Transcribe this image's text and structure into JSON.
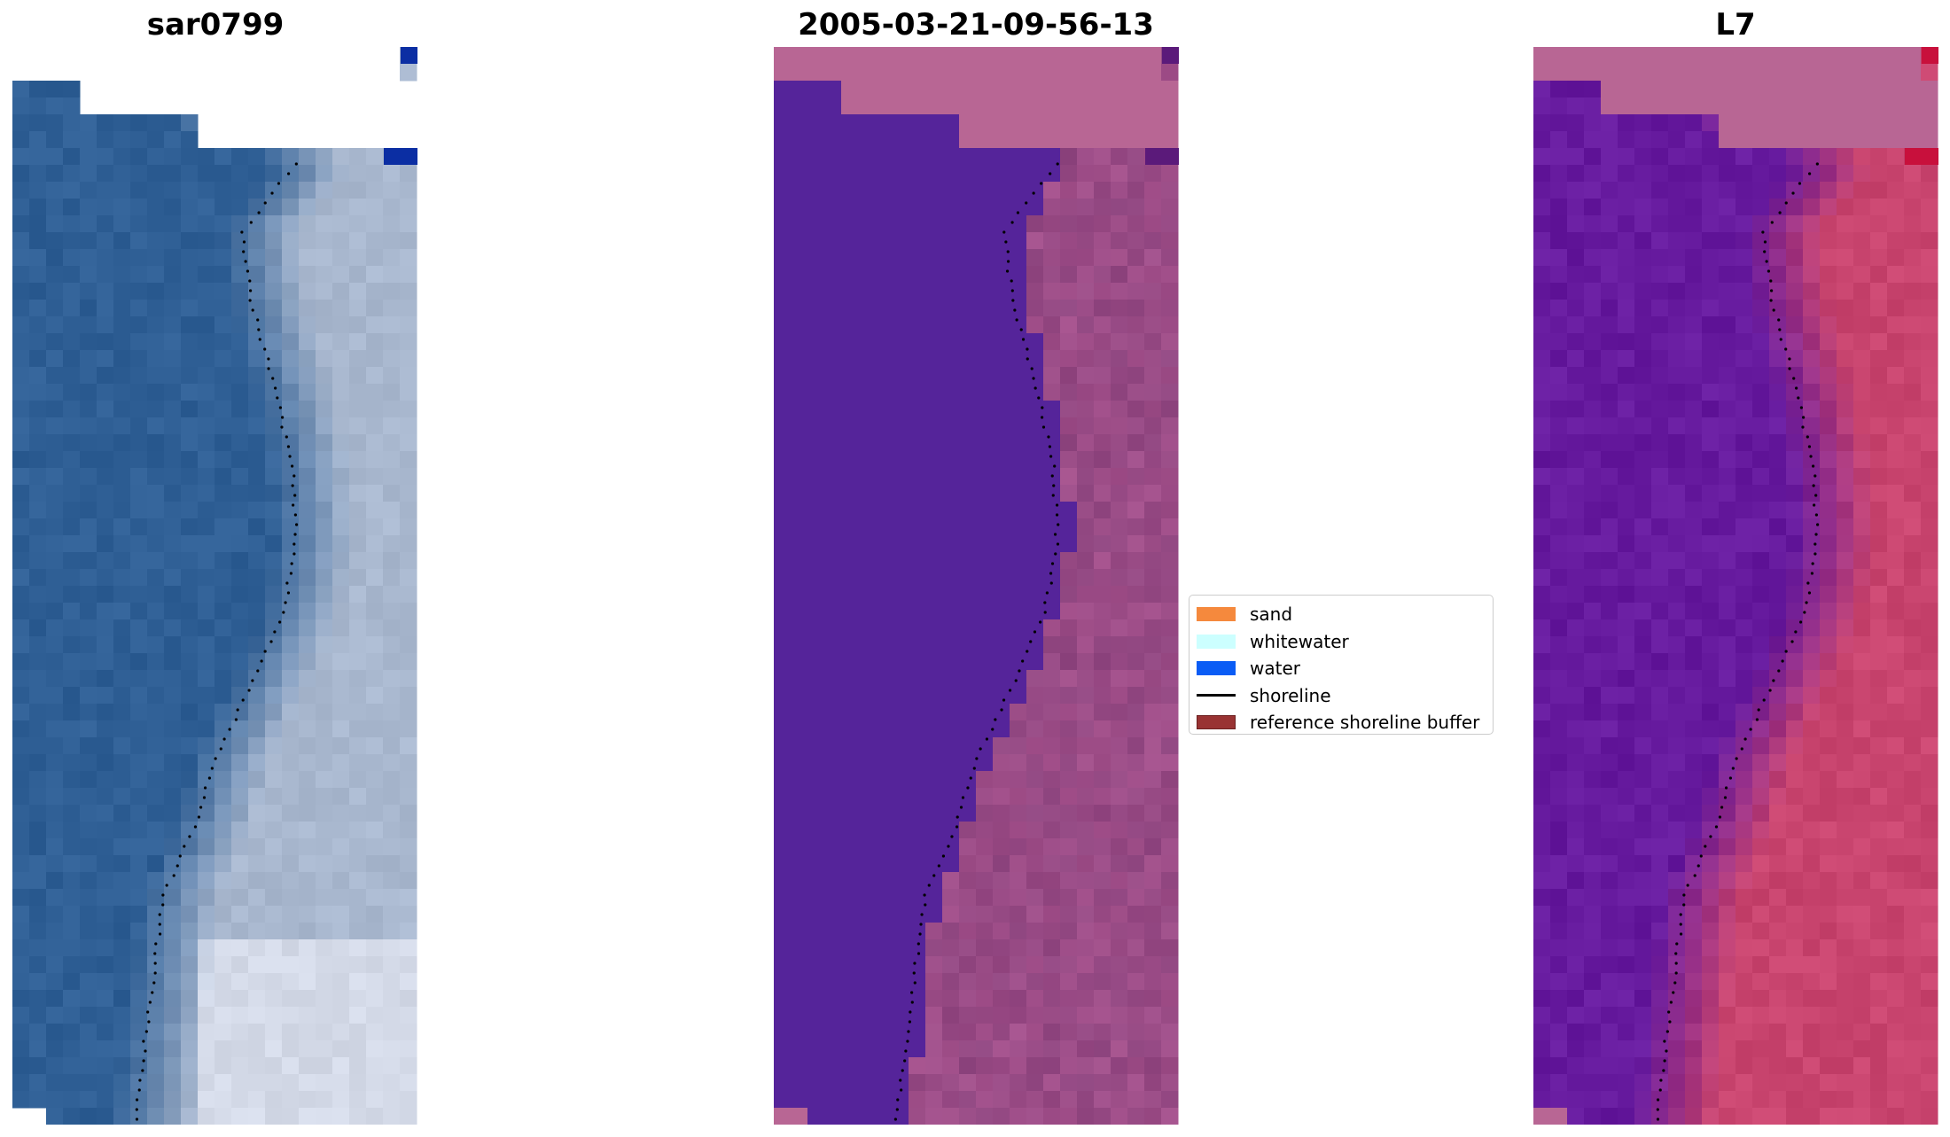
{
  "titles": {
    "left": "sar0799",
    "center": "2005-03-21-09-56-13",
    "right": "L7"
  },
  "legend": {
    "items": [
      {
        "label": "sand",
        "type": "patch",
        "color": "#f5893d"
      },
      {
        "label": "whitewater",
        "type": "patch",
        "color": "#ccffff"
      },
      {
        "label": "water",
        "type": "patch",
        "color": "#0a5cf5"
      },
      {
        "label": "shoreline",
        "type": "line",
        "color": "#000000"
      },
      {
        "label": "reference shoreline buffer",
        "type": "patch",
        "color": "#993333"
      }
    ]
  },
  "colors": {
    "rgb_water": "#2f5f95",
    "rgb_land": "#a9b8cf",
    "class_water": "#55249a",
    "class_land": "#8f4680",
    "nodata_pink": "#b86694",
    "index_water": "#661a9e",
    "index_land": "#c9456f"
  }
}
